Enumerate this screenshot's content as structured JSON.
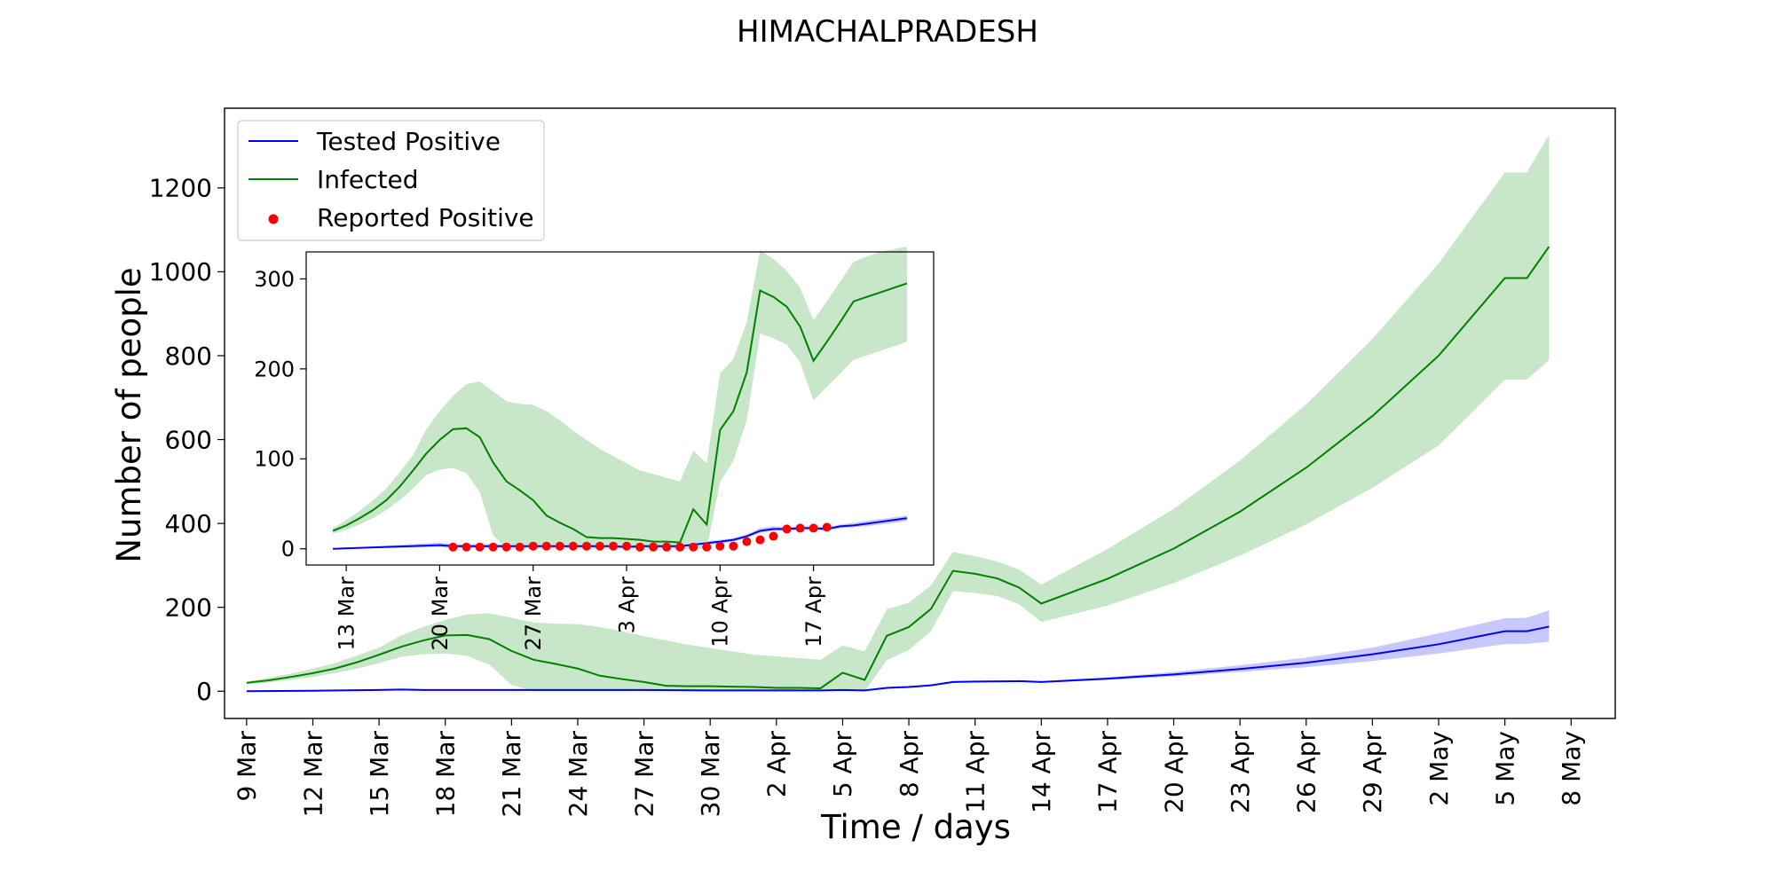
{
  "chart_data": [
    {
      "type": "line",
      "title": "HIMACHALPRADESH",
      "xlabel": "Time / days",
      "ylabel": "Number of people",
      "xlim": [
        "2020-03-08",
        "2020-05-10"
      ],
      "ylim": [
        -65,
        1390
      ],
      "x_ticks": [
        "2020-03-09",
        "2020-03-12",
        "2020-03-15",
        "2020-03-18",
        "2020-03-21",
        "2020-03-24",
        "2020-03-27",
        "2020-03-30",
        "2020-04-02",
        "2020-04-05",
        "2020-04-08",
        "2020-04-11",
        "2020-04-14",
        "2020-04-17",
        "2020-04-20",
        "2020-04-23",
        "2020-04-26",
        "2020-04-29",
        "2020-05-02",
        "2020-05-05",
        "2020-05-08"
      ],
      "x_tick_labels": [
        "9 Mar",
        "12 Mar",
        "15 Mar",
        "18 Mar",
        "21 Mar",
        "24 Mar",
        "27 Mar",
        "30 Mar",
        "2 Apr",
        "5 Apr",
        "8 Apr",
        "11 Apr",
        "14 Apr",
        "17 Apr",
        "20 Apr",
        "23 Apr",
        "26 Apr",
        "29 Apr",
        "2 May",
        "5 May",
        "8 May"
      ],
      "y_ticks": [
        0,
        200,
        400,
        600,
        800,
        1000,
        1200
      ],
      "grid": false,
      "legend": {
        "position": "top-left",
        "entries": [
          {
            "label": "Tested Positive",
            "color": "#0000ff",
            "marker": "line"
          },
          {
            "label": "Infected",
            "color": "#008000",
            "marker": "line"
          },
          {
            "label": "Reported Positive",
            "color": "#ff0000",
            "marker": "dot"
          }
        ]
      },
      "series": [
        {
          "name": "Tested Positive",
          "color": "#0000ff",
          "band_color": "#c8c8ff",
          "x": [
            "2020-03-09",
            "2020-03-12",
            "2020-03-15",
            "2020-03-16",
            "2020-03-17",
            "2020-03-20",
            "2020-03-24",
            "2020-03-27",
            "2020-03-30",
            "2020-04-02",
            "2020-04-03",
            "2020-04-04",
            "2020-04-05",
            "2020-04-06",
            "2020-04-07",
            "2020-04-08",
            "2020-04-09",
            "2020-04-10",
            "2020-04-11",
            "2020-04-13",
            "2020-04-14",
            "2020-04-17",
            "2020-04-20",
            "2020-04-23",
            "2020-04-26",
            "2020-04-29",
            "2020-05-02",
            "2020-05-05",
            "2020-05-06",
            "2020-05-07"
          ],
          "y": [
            0,
            1,
            3,
            4,
            3,
            3,
            3,
            3,
            2,
            2,
            2,
            2,
            3,
            2,
            8,
            10,
            14,
            22,
            23,
            24,
            22,
            30,
            40,
            53,
            68,
            88,
            112,
            143,
            143,
            154
          ],
          "lower": [
            0,
            0,
            1,
            2,
            1,
            1,
            1,
            1,
            0,
            0,
            0,
            0,
            1,
            0,
            6,
            8,
            12,
            20,
            21,
            22,
            20,
            27,
            35,
            46,
            57,
            72,
            90,
            112,
            113,
            118
          ],
          "upper": [
            0,
            2,
            5,
            6,
            5,
            5,
            5,
            5,
            4,
            4,
            4,
            4,
            5,
            4,
            10,
            12,
            16,
            24,
            25,
            26,
            24,
            33,
            46,
            62,
            80,
            104,
            138,
            174,
            175,
            193
          ]
        },
        {
          "name": "Infected",
          "color": "#008000",
          "band_color": "#c8e6c8",
          "x": [
            "2020-03-09",
            "2020-03-10",
            "2020-03-11",
            "2020-03-12",
            "2020-03-13",
            "2020-03-14",
            "2020-03-15",
            "2020-03-16",
            "2020-03-17",
            "2020-03-18",
            "2020-03-19",
            "2020-03-20",
            "2020-03-21",
            "2020-03-22",
            "2020-03-23",
            "2020-03-24",
            "2020-03-25",
            "2020-03-26",
            "2020-03-27",
            "2020-03-28",
            "2020-03-29",
            "2020-03-30",
            "2020-03-31",
            "2020-04-01",
            "2020-04-02",
            "2020-04-03",
            "2020-04-04",
            "2020-04-05",
            "2020-04-06",
            "2020-04-07",
            "2020-04-08",
            "2020-04-09",
            "2020-04-10",
            "2020-04-11",
            "2020-04-12",
            "2020-04-13",
            "2020-04-14",
            "2020-04-17",
            "2020-04-20",
            "2020-04-23",
            "2020-04-26",
            "2020-04-29",
            "2020-05-02",
            "2020-05-05",
            "2020-05-06",
            "2020-05-07"
          ],
          "y": [
            20,
            26,
            34,
            43,
            54,
            69,
            87,
            106,
            121,
            133,
            134,
            124,
            96,
            75,
            65,
            54,
            37,
            29,
            22,
            13,
            12,
            12,
            11,
            10,
            8,
            8,
            7,
            44,
            27,
            132,
            153,
            196,
            287,
            280,
            269,
            247,
            209,
            268,
            340,
            428,
            533,
            656,
            800,
            985,
            985,
            1060
          ],
          "lower": [
            17,
            21,
            27,
            34,
            43,
            54,
            67,
            82,
            88,
            90,
            84,
            63,
            15,
            0,
            0,
            0,
            0,
            0,
            0,
            0,
            0,
            0,
            0,
            0,
            0,
            0,
            0,
            0,
            0,
            74,
            98,
            143,
            239,
            234,
            227,
            207,
            165,
            204,
            258,
            323,
            398,
            485,
            586,
            743,
            743,
            789
          ],
          "upper": [
            23,
            32,
            42,
            54,
            67,
            85,
            104,
            133,
            153,
            170,
            183,
            186,
            175,
            164,
            161,
            160,
            153,
            143,
            131,
            121,
            111,
            103,
            95,
            87,
            83,
            79,
            75,
            109,
            95,
            195,
            211,
            252,
            332,
            322,
            309,
            290,
            254,
            339,
            435,
            550,
            684,
            840,
            1020,
            1237,
            1237,
            1327
          ]
        }
      ]
    },
    {
      "type": "scatter",
      "title": "",
      "xlim": [
        "2020-03-10",
        "2020-04-26"
      ],
      "ylim": [
        -18,
        330
      ],
      "x_ticks": [
        "2020-03-13",
        "2020-03-20",
        "2020-03-27",
        "2020-04-03",
        "2020-04-10",
        "2020-04-17"
      ],
      "x_tick_labels": [
        "13 Mar",
        "20 Mar",
        "27 Mar",
        "3 Apr",
        "10 Apr",
        "17 Apr"
      ],
      "y_ticks": [
        0,
        100,
        200,
        300
      ],
      "grid": false,
      "series": [
        {
          "name": "Tested Positive",
          "color": "#0000ff",
          "band_color": "#c8c8ff",
          "x": [
            "2020-03-12",
            "2020-03-20",
            "2020-03-21",
            "2020-04-02",
            "2020-04-03",
            "2020-04-04",
            "2020-04-06",
            "2020-04-07",
            "2020-04-10",
            "2020-04-11",
            "2020-04-12",
            "2020-04-13",
            "2020-04-14",
            "2020-04-15",
            "2020-04-16",
            "2020-04-17",
            "2020-04-18",
            "2020-04-19",
            "2020-04-20",
            "2020-04-21",
            "2020-04-22",
            "2020-04-23",
            "2020-04-24"
          ],
          "y": [
            0,
            4,
            3,
            3,
            2,
            3,
            3,
            3,
            8,
            10,
            14,
            20,
            22,
            22,
            23,
            23,
            22,
            25,
            26,
            28,
            30,
            32,
            34
          ],
          "lower": [
            0,
            2,
            1,
            1,
            0,
            1,
            1,
            1,
            6,
            8,
            12,
            18,
            20,
            20,
            21,
            21,
            20,
            23,
            24,
            25,
            27,
            29,
            31
          ],
          "upper": [
            0,
            7,
            5,
            5,
            4,
            5,
            5,
            5,
            10,
            12,
            16,
            23,
            25,
            24,
            25,
            25,
            24,
            27,
            29,
            31,
            33,
            35,
            37
          ]
        },
        {
          "name": "Infected",
          "color": "#008000",
          "band_color": "#c8e6c8",
          "x": [
            "2020-03-12",
            "2020-03-13",
            "2020-03-14",
            "2020-03-15",
            "2020-03-16",
            "2020-03-17",
            "2020-03-18",
            "2020-03-19",
            "2020-03-20",
            "2020-03-21",
            "2020-03-22",
            "2020-03-23",
            "2020-03-24",
            "2020-03-25",
            "2020-03-26",
            "2020-03-27",
            "2020-03-28",
            "2020-03-29",
            "2020-03-30",
            "2020-03-31",
            "2020-04-01",
            "2020-04-02",
            "2020-04-03",
            "2020-04-04",
            "2020-04-05",
            "2020-04-06",
            "2020-04-07",
            "2020-04-08",
            "2020-04-09",
            "2020-04-10",
            "2020-04-11",
            "2020-04-12",
            "2020-04-13",
            "2020-04-14",
            "2020-04-15",
            "2020-04-16",
            "2020-04-17",
            "2020-04-18",
            "2020-04-19",
            "2020-04-20",
            "2020-04-21",
            "2020-04-22",
            "2020-04-23",
            "2020-04-24"
          ],
          "y": [
            20,
            26,
            34,
            43,
            54,
            69,
            87,
            106,
            121,
            133,
            134,
            124,
            96,
            75,
            65,
            54,
            37,
            29,
            22,
            13,
            12,
            12,
            11,
            10,
            8,
            8,
            7,
            44,
            27,
            132,
            153,
            196,
            287,
            280,
            269,
            247,
            209,
            230,
            252,
            275,
            280,
            285,
            290,
            295
          ],
          "lower": [
            17,
            21,
            27,
            34,
            43,
            54,
            67,
            82,
            88,
            90,
            84,
            63,
            15,
            0,
            0,
            0,
            0,
            0,
            0,
            0,
            0,
            0,
            0,
            0,
            0,
            0,
            0,
            0,
            0,
            74,
            98,
            143,
            239,
            234,
            227,
            207,
            165,
            180,
            195,
            210,
            215,
            220,
            225,
            230
          ],
          "upper": [
            23,
            32,
            42,
            54,
            67,
            85,
            104,
            133,
            153,
            170,
            183,
            186,
            175,
            164,
            161,
            160,
            153,
            143,
            131,
            121,
            111,
            103,
            95,
            87,
            83,
            79,
            75,
            109,
            95,
            195,
            211,
            252,
            332,
            322,
            309,
            290,
            254,
            275,
            297,
            319,
            325,
            330,
            333,
            336
          ]
        },
        {
          "name": "Reported Positive",
          "color": "#ff0000",
          "x": [
            "2020-03-21",
            "2020-03-22",
            "2020-03-23",
            "2020-03-24",
            "2020-03-25",
            "2020-03-26",
            "2020-03-27",
            "2020-03-28",
            "2020-03-29",
            "2020-03-30",
            "2020-03-31",
            "2020-04-01",
            "2020-04-02",
            "2020-04-03",
            "2020-04-04",
            "2020-04-05",
            "2020-04-06",
            "2020-04-07",
            "2020-04-08",
            "2020-04-09",
            "2020-04-10",
            "2020-04-11",
            "2020-04-12",
            "2020-04-13",
            "2020-04-14",
            "2020-04-15",
            "2020-04-16",
            "2020-04-17",
            "2020-04-18"
          ],
          "y": [
            2,
            2,
            2,
            2,
            2,
            2,
            3,
            3,
            3,
            3,
            3,
            3,
            3,
            3,
            2,
            2,
            2,
            2,
            2,
            2,
            3,
            3,
            8,
            10,
            14,
            22,
            23,
            23,
            24
          ]
        }
      ]
    }
  ]
}
